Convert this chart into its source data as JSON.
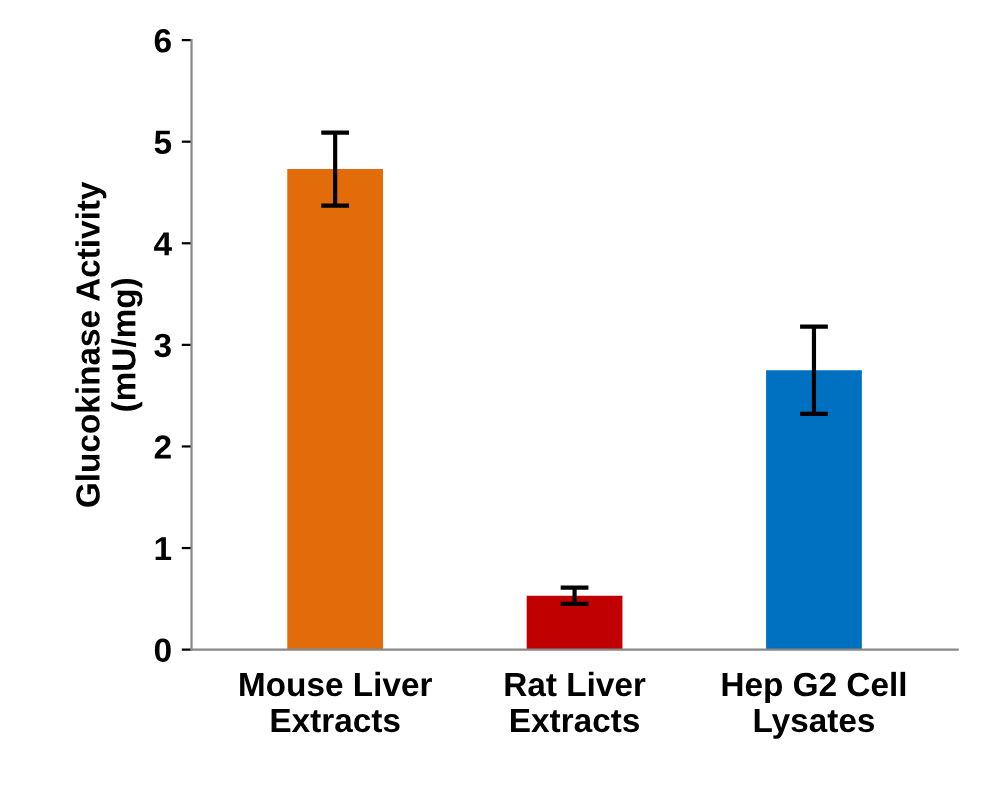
{
  "chart_data": {
    "type": "bar",
    "ylabel": "Glucokinase Activity\n(mU/mg)",
    "categories": [
      "Mouse Liver\nExtracts",
      "Rat Liver\nExtracts",
      "Hep G2 Cell\nLysates"
    ],
    "values": [
      4.73,
      0.53,
      2.75
    ],
    "errors": [
      0.36,
      0.08,
      0.43
    ],
    "colors": [
      "#e36c0a",
      "#c00000",
      "#0070c0"
    ],
    "ylim": [
      0,
      6
    ],
    "yticks": [
      0,
      1,
      2,
      3,
      4,
      5,
      6
    ],
    "grid": false
  }
}
